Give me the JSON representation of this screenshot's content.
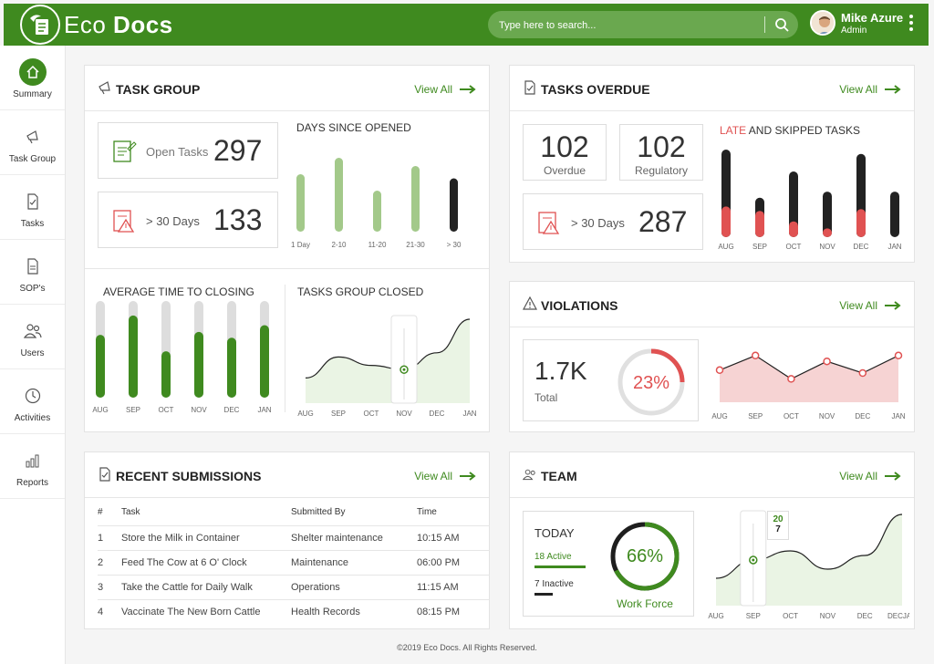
{
  "header": {
    "brand_light": "Eco",
    "brand_bold": "Docs",
    "search_placeholder": "Type here to search...",
    "user_name": "Mike Azure",
    "user_role": "Admin"
  },
  "sidebar": {
    "items": [
      {
        "label": "Summary",
        "icon": "home-icon",
        "active": true
      },
      {
        "label": "Task Group",
        "icon": "megaphone-icon"
      },
      {
        "label": "Tasks",
        "icon": "task-check-icon"
      },
      {
        "label": "SOP's",
        "icon": "document-icon"
      },
      {
        "label": "Users",
        "icon": "users-icon"
      },
      {
        "label": "Activities",
        "icon": "clock-icon"
      },
      {
        "label": "Reports",
        "icon": "bar-chart-icon"
      }
    ]
  },
  "view_all": "View All",
  "task_group": {
    "title": "TASK GROUP",
    "open_tasks_label": "Open Tasks",
    "open_tasks_value": "297",
    "over30_label": "> 30 Days",
    "over30_value": "133",
    "days_title": "DAYS SINCE OPENED",
    "avg_title": "AVERAGE TIME TO CLOSING",
    "closed_title": "TASKS GROUP CLOSED"
  },
  "tasks_overdue": {
    "title": "TASKS OVERDUE",
    "overdue_value": "102",
    "overdue_label": "Overdue",
    "regulatory_value": "102",
    "regulatory_label": "Regulatory",
    "over30_label": "> 30 Days",
    "over30_value": "287",
    "chart_title_late": "LATE",
    "chart_title_rest": " AND SKIPPED TASKS"
  },
  "violations": {
    "title": "VIOLATIONS",
    "total_value": "1.7K",
    "total_label": "Total",
    "percent_label": "23%"
  },
  "recent": {
    "title": "RECENT SUBMISSIONS",
    "columns": [
      "#",
      "Task",
      "Submitted By",
      "Time"
    ],
    "rows": [
      {
        "n": "1",
        "task": "Store the Milk in Container",
        "by": "Shelter maintenance",
        "time": "10:15 AM"
      },
      {
        "n": "2",
        "task": "Feed The Cow at 6 O' Clock",
        "by": "Maintenance",
        "time": "06:00 PM"
      },
      {
        "n": "3",
        "task": "Take the Cattle for Daily Walk",
        "by": "Operations",
        "time": "11:15 AM"
      },
      {
        "n": "4",
        "task": "Vaccinate The New Born Cattle",
        "by": "Health Records",
        "time": "08:15 PM"
      }
    ]
  },
  "team": {
    "title": "TEAM",
    "today_label": "TODAY",
    "active_label": "18 Active",
    "inactive_label": "7 Inactive",
    "percent_label": "66%",
    "workforce_label": "Work Force",
    "tooltip_top": "20",
    "tooltip_bottom": "7"
  },
  "footer": "©2019 Eco Docs. All Rights Reserved.",
  "colors": {
    "brand": "#3f8a1f",
    "light_green": "#a3c98a",
    "dark": "#222222",
    "red": "#e05252",
    "pink_fill": "#f6d3d3"
  },
  "chart_data": [
    {
      "type": "bar",
      "title": "DAYS SINCE OPENED",
      "categories": [
        "1 Day",
        "2-10",
        "11-20",
        "21-30",
        "> 30"
      ],
      "values": [
        70,
        90,
        50,
        80,
        65
      ]
    },
    {
      "type": "bar",
      "title": "AVERAGE TIME TO CLOSING",
      "categories": [
        "AUG",
        "SEP",
        "OCT",
        "NOV",
        "DEC",
        "JAN"
      ],
      "values": [
        65,
        85,
        48,
        68,
        62,
        75
      ],
      "max": 100
    },
    {
      "type": "area",
      "title": "TASKS GROUP CLOSED",
      "categories": [
        "AUG",
        "SEP",
        "OCT",
        "NOV",
        "DEC",
        "JAN"
      ],
      "values": [
        30,
        55,
        45,
        40,
        60,
        100
      ],
      "highlight": "NOV"
    },
    {
      "type": "bar",
      "title": "LATE AND SKIPPED TASKS",
      "categories": [
        "AUG",
        "SEP",
        "OCT",
        "NOV",
        "DEC",
        "JAN"
      ],
      "series": [
        {
          "name": "LATE",
          "values": [
            35,
            30,
            18,
            10,
            32,
            0
          ]
        },
        {
          "values": [
            100,
            45,
            75,
            52,
            95,
            52
          ]
        }
      ]
    },
    {
      "type": "line",
      "categories": [
        "AUG",
        "SEP",
        "OCT",
        "NOV",
        "DEC",
        "JAN"
      ],
      "values": [
        55,
        80,
        40,
        70,
        50,
        80
      ]
    },
    {
      "type": "area",
      "categories": [
        "AUG",
        "SEP",
        "OCT",
        "NOV",
        "DEC",
        "DECJAN"
      ],
      "values": [
        30,
        50,
        60,
        40,
        55,
        100
      ],
      "highlight": "SEP"
    }
  ]
}
